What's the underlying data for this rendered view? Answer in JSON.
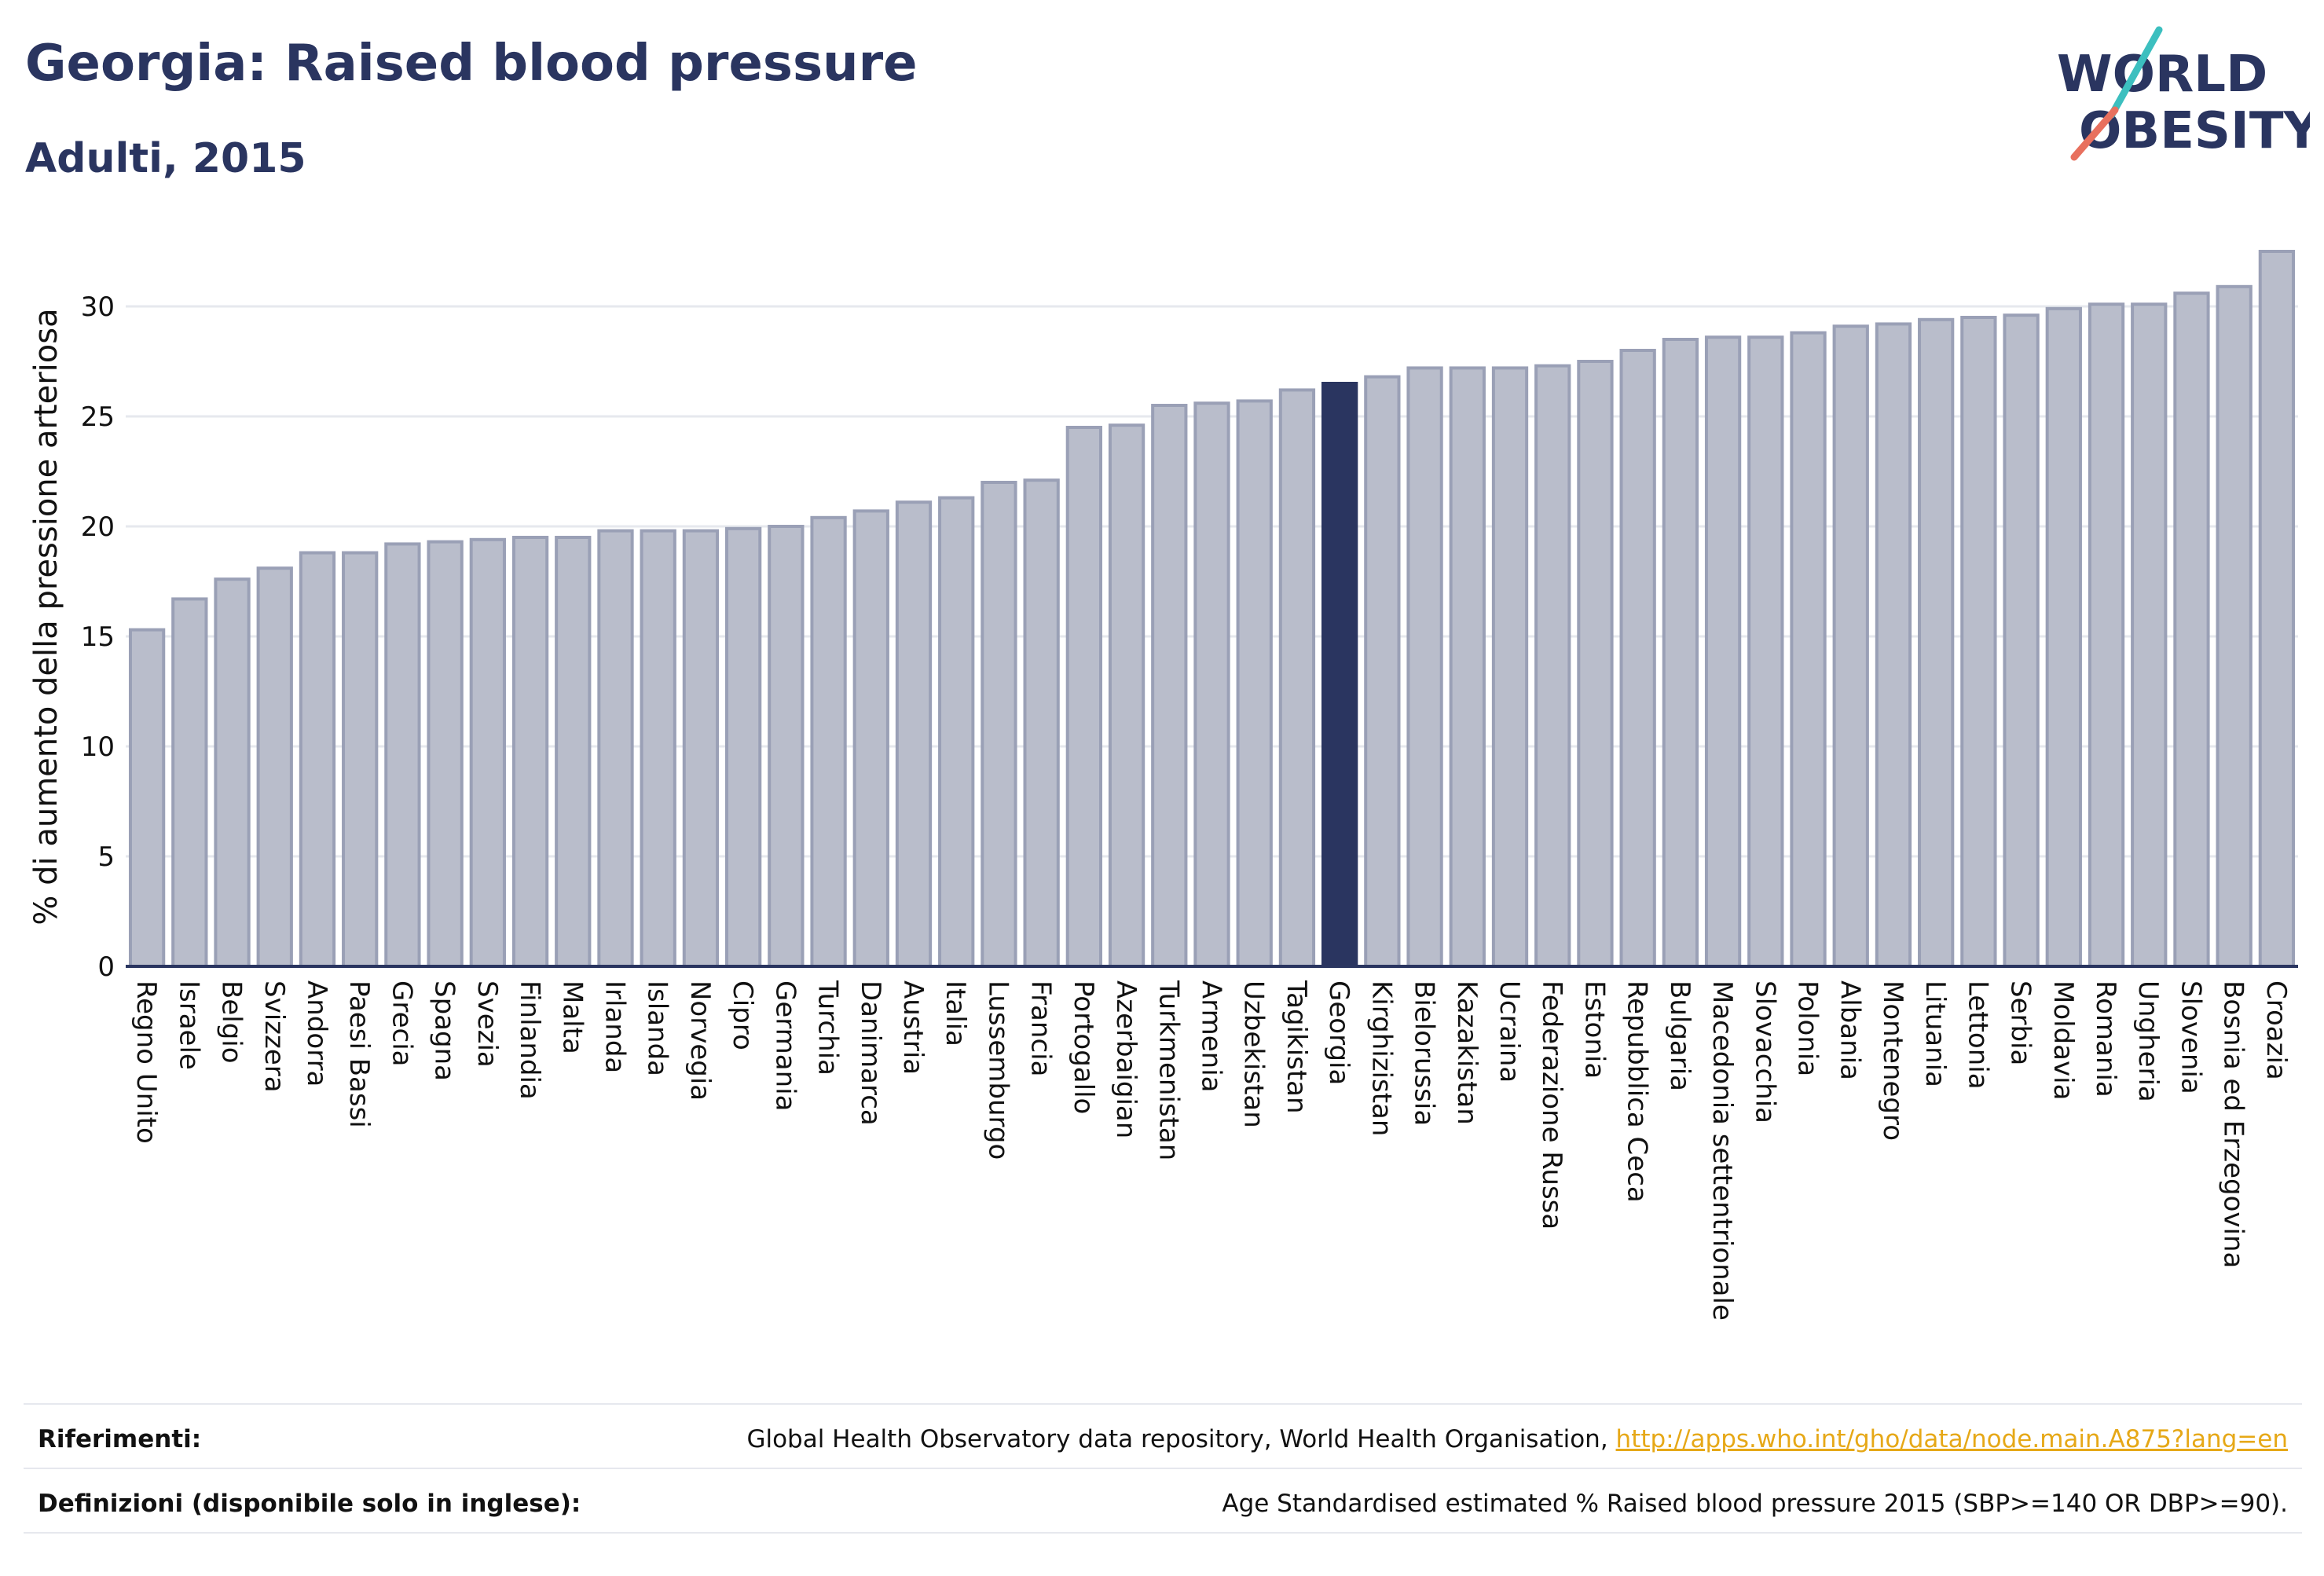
{
  "title": "Georgia: Raised blood pressure",
  "subtitle": "Adulti, 2015",
  "logo": {
    "line1": "WORLD",
    "line2": "OBESITY"
  },
  "colors": {
    "highlight": "#2a3560",
    "bar_fill": "#b9bdcb",
    "bar_stroke": "#9aa0b6",
    "grid": "#e6e8ee",
    "link": "#e6a817"
  },
  "chart_data": {
    "type": "bar",
    "ylabel": "% di aumento della pressione arteriosa",
    "xlabel": "",
    "ylim": [
      0,
      32.5
    ],
    "yticks": [
      0,
      5,
      10,
      15,
      20,
      25,
      30
    ],
    "grid": true,
    "highlight": "Georgia",
    "categories": [
      "Regno Unito",
      "Israele",
      "Belgio",
      "Svizzera",
      "Andorra",
      "Paesi Bassi",
      "Grecia",
      "Spagna",
      "Svezia",
      "Finlandia",
      "Malta",
      "Irlanda",
      "Islanda",
      "Norvegia",
      "Cipro",
      "Germania",
      "Turchia",
      "Danimarca",
      "Austria",
      "Italia",
      "Lussemburgo",
      "Francia",
      "Portogallo",
      "Azerbaigian",
      "Turkmenistan",
      "Armenia",
      "Uzbekistan",
      "Tagikistan",
      "Georgia",
      "Kirghizistan",
      "Bielorussia",
      "Kazakistan",
      "Ucraina",
      "Federazione Russa",
      "Estonia",
      "Repubblica Ceca",
      "Bulgaria",
      "Macedonia settentrionale",
      "Slovacchia",
      "Polonia",
      "Albania",
      "Montenegro",
      "Lituania",
      "Lettonia",
      "Serbia",
      "Moldavia",
      "Romania",
      "Ungheria",
      "Slovenia",
      "Bosnia ed Erzegovina",
      "Croazia"
    ],
    "values": [
      15.3,
      16.7,
      17.6,
      18.1,
      18.8,
      18.8,
      19.2,
      19.3,
      19.4,
      19.5,
      19.5,
      19.8,
      19.8,
      19.8,
      19.9,
      20.0,
      20.4,
      20.7,
      21.1,
      21.3,
      22.0,
      22.1,
      24.5,
      24.6,
      25.5,
      25.6,
      25.7,
      26.2,
      26.5,
      26.8,
      27.2,
      27.2,
      27.2,
      27.3,
      27.5,
      28.0,
      28.5,
      28.6,
      28.6,
      28.8,
      29.1,
      29.2,
      29.4,
      29.5,
      29.6,
      29.9,
      30.1,
      30.1,
      30.6,
      30.9,
      32.5
    ]
  },
  "footer": {
    "references_label": "Riferimenti:",
    "references_text": "Global Health Observatory data repository, World Health Organisation, ",
    "references_link": "http://apps.who.int/gho/data/node.main.A875?lang=en",
    "definitions_label": "Definizioni (disponibile solo in inglese):",
    "definitions_text": "Age Standardised estimated % Raised blood pressure 2015 (SBP>=140 OR DBP>=90)."
  }
}
